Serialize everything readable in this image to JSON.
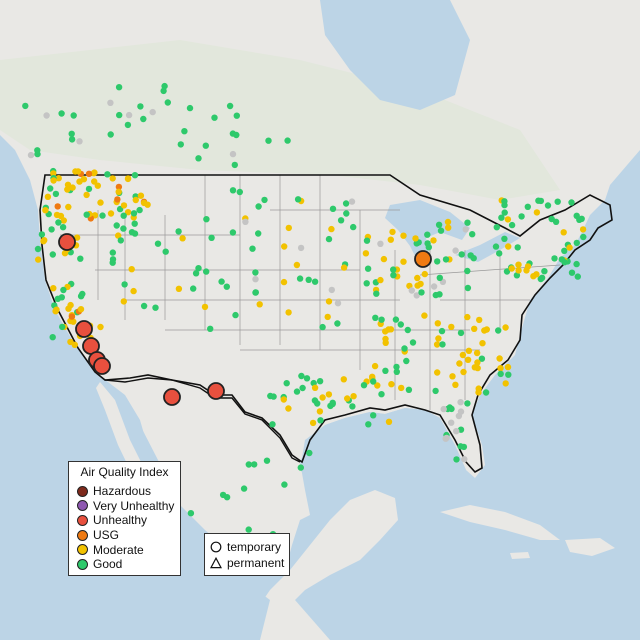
{
  "legend": {
    "title": "Air Quality Index",
    "categories": [
      {
        "label": "Hazardous",
        "color": "#7e2a1c"
      },
      {
        "label": "Very Unhealthy",
        "color": "#8e58b0"
      },
      {
        "label": "Unhealthy",
        "color": "#e8503e"
      },
      {
        "label": "USG",
        "color": "#ef7a12"
      },
      {
        "label": "Moderate",
        "color": "#f2c200"
      },
      {
        "label": "Good",
        "color": "#2ec96b"
      }
    ]
  },
  "monitor_types": {
    "temporary": {
      "label": "temporary",
      "icon": "circle-outline-icon"
    },
    "permanent": {
      "label": "permanent",
      "icon": "triangle-outline-icon"
    }
  },
  "colors": {
    "water": "#bcd4e6",
    "land": "#e9e8e5",
    "forest": "#dde6d6",
    "state_line": "#9a9a9a",
    "border": "#111111",
    "no_data": "#c4c4c4"
  }
}
